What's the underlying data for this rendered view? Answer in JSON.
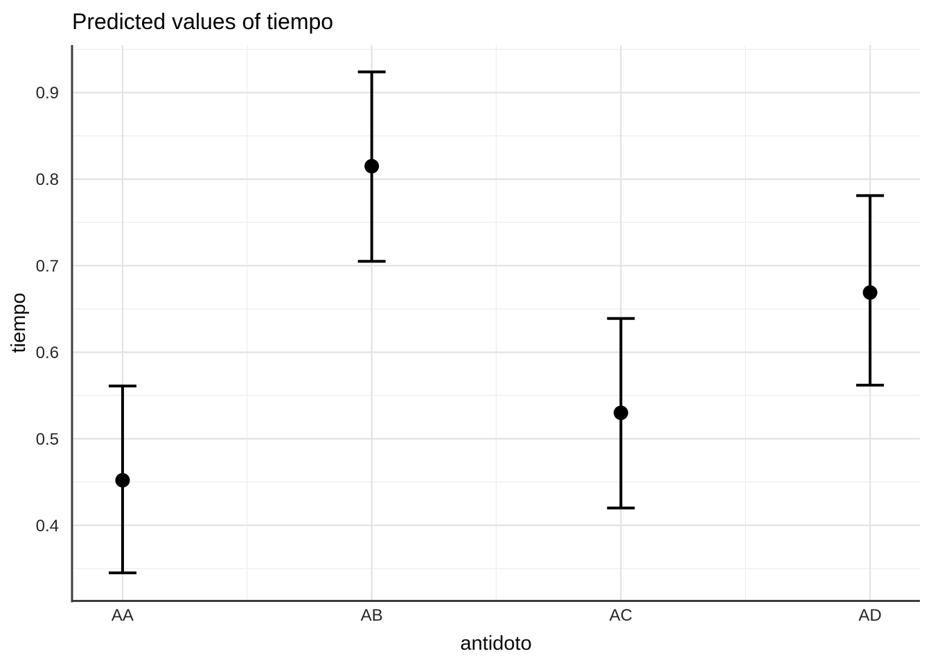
{
  "title": "Predicted values of tiempo",
  "colors": {
    "background": "#ffffff",
    "grid_major": "#e2e2e2",
    "grid_minor": "#f0f0f0",
    "axis_line": "#3d3d3d",
    "point": "#000000",
    "errorbar": "#000000",
    "title_text": "#000000",
    "tick_text": "#262626"
  },
  "chart_data": {
    "type": "scatter",
    "variant": "point-estimates-with-error-bars",
    "title": "Predicted values of tiempo",
    "xlabel": "antidoto",
    "ylabel": "tiempo",
    "categories": [
      "AA",
      "AB",
      "AC",
      "AD"
    ],
    "series": [
      {
        "name": "Predicted values of tiempo",
        "values": [
          0.452,
          0.815,
          0.53,
          0.669
        ],
        "ci_low": [
          0.345,
          0.705,
          0.42,
          0.562
        ],
        "ci_high": [
          0.561,
          0.924,
          0.639,
          0.781
        ]
      }
    ],
    "ylim": [
      0.313,
      0.955
    ],
    "x_domain_expanded": [
      0.8,
      4.2
    ],
    "y_major_ticks": [
      0.4,
      0.5,
      0.6,
      0.7,
      0.8,
      0.9
    ],
    "y_tick_labels": [
      "0.4",
      "0.5",
      "0.6",
      "0.7",
      "0.8",
      "0.9"
    ],
    "y_minor_gridlines": [
      0.35,
      0.45,
      0.55,
      0.65,
      0.75,
      0.85,
      0.95
    ],
    "grid": "major+minor",
    "legend": "none"
  }
}
